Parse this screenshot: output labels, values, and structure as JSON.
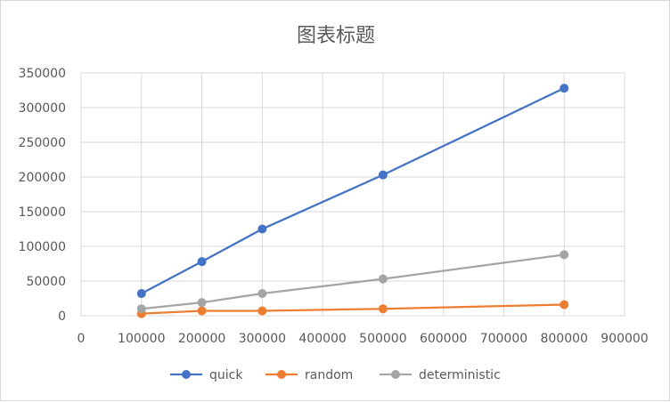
{
  "chart_data": {
    "type": "scatter",
    "title": "图表标题",
    "xlabel": "",
    "ylabel": "",
    "xlim": [
      0,
      900000
    ],
    "ylim": [
      0,
      350000
    ],
    "x_ticks": [
      0,
      100000,
      200000,
      300000,
      400000,
      500000,
      600000,
      700000,
      800000,
      900000
    ],
    "y_ticks": [
      0,
      50000,
      100000,
      150000,
      200000,
      250000,
      300000,
      350000
    ],
    "grid": true,
    "legend_position": "bottom",
    "series": [
      {
        "name": "quick",
        "color": "#4472C4",
        "x": [
          100000,
          200000,
          300000,
          500000,
          800000
        ],
        "y": [
          32000,
          78000,
          125000,
          203000,
          328000
        ]
      },
      {
        "name": "random",
        "color": "#ED7D31",
        "x": [
          100000,
          200000,
          300000,
          500000,
          800000
        ],
        "y": [
          3000,
          7000,
          7000,
          10000,
          16000
        ]
      },
      {
        "name": "deterministic",
        "color": "#A5A5A5",
        "x": [
          100000,
          200000,
          300000,
          500000,
          800000
        ],
        "y": [
          10000,
          19000,
          32000,
          53000,
          88000
        ]
      }
    ]
  }
}
